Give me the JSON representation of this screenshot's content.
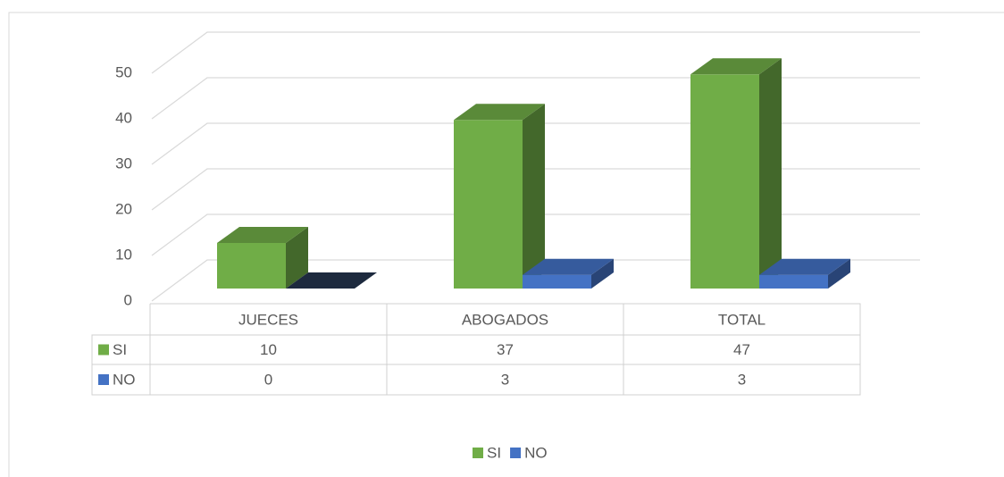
{
  "chart_data": {
    "type": "bar",
    "categories": [
      "JUECES",
      "ABOGADOS",
      "TOTAL"
    ],
    "series": [
      {
        "name": "SI",
        "color": "#70ad47",
        "values": [
          10,
          37,
          47
        ]
      },
      {
        "name": "NO",
        "color": "#4472c4",
        "values": [
          0,
          3,
          3
        ]
      }
    ],
    "ylim": [
      0,
      50
    ],
    "yticks": [
      0,
      10,
      20,
      30,
      40,
      50
    ],
    "grid": true,
    "legend": "bottom",
    "data_table": true
  }
}
